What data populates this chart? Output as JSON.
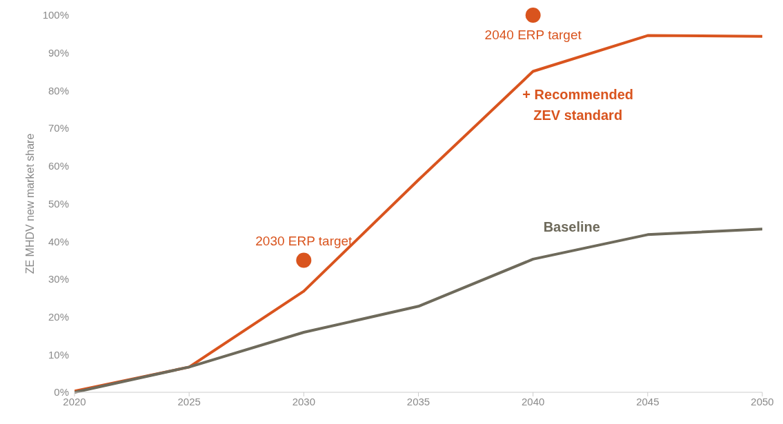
{
  "chart_data": {
    "type": "line",
    "ylabel": "ZE MHDV new market share",
    "x": [
      2020,
      2025,
      2030,
      2035,
      2040,
      2045,
      2050
    ],
    "series": [
      {
        "name": "+ Recommended ZEV standard",
        "color": "#d9541e",
        "values": [
          0.3,
          6.7,
          26.8,
          56.3,
          85.1,
          94.6,
          94.4
        ]
      },
      {
        "name": "Baseline",
        "color": "#6e6a5b",
        "values": [
          0,
          6.7,
          15.9,
          22.8,
          35.3,
          41.8,
          43.3
        ]
      },
      {
        "type": "scatter",
        "color": "#d9541e",
        "marker": "circle",
        "x": [
          2030,
          2040
        ],
        "values": [
          35,
          100
        ]
      }
    ],
    "annotations": [
      {
        "text": "2030 ERP target",
        "x": 2030,
        "y": 35
      },
      {
        "text": "2040 ERP target",
        "x": 2040,
        "y": 100
      }
    ],
    "xlim": [
      2020,
      2050
    ],
    "xticks": [
      2020,
      2025,
      2030,
      2035,
      2040,
      2045,
      2050
    ],
    "ylim": [
      0,
      100
    ],
    "yticks": [
      {
        "value": 0,
        "label": "0%"
      },
      {
        "value": 10,
        "label": "10%"
      },
      {
        "value": 20,
        "label": "20%"
      },
      {
        "value": 30,
        "label": "30%"
      },
      {
        "value": 40,
        "label": "40%"
      },
      {
        "value": 50,
        "label": "50%"
      },
      {
        "value": 60,
        "label": "60%"
      },
      {
        "value": 70,
        "label": "70%"
      },
      {
        "value": 80,
        "label": "80%"
      },
      {
        "value": 90,
        "label": "90%"
      },
      {
        "value": 100,
        "label": "100%"
      }
    ],
    "grid": false,
    "legend": false,
    "line_style": "solid"
  }
}
